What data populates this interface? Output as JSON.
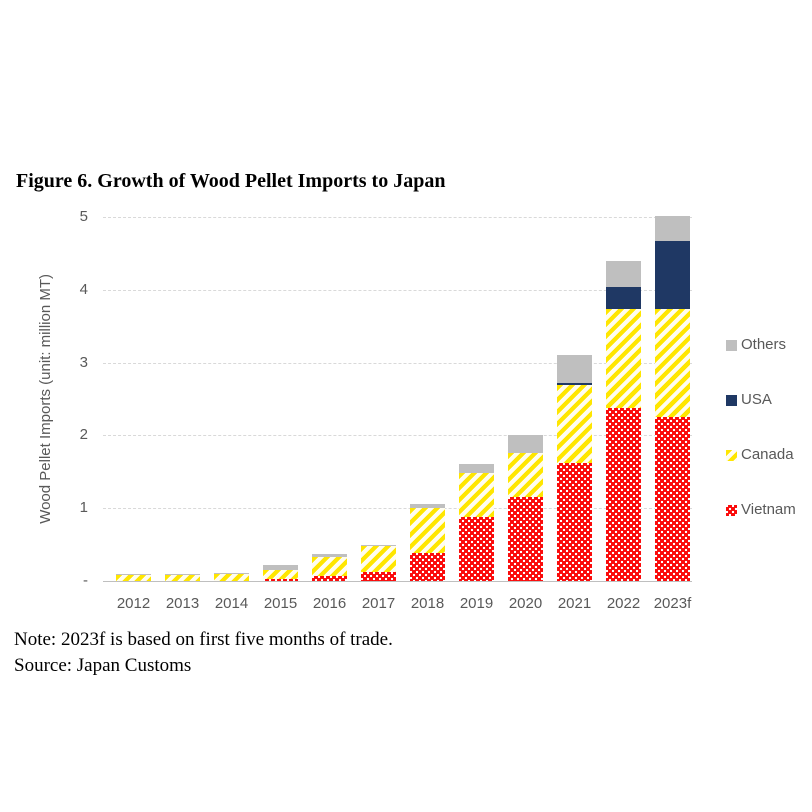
{
  "figure": {
    "title": "Figure 6. Growth of Wood Pellet Imports to Japan",
    "note": "Note: 2023f is based on first five months of trade.",
    "source": "Source: Japan Customs"
  },
  "chart_data": {
    "type": "bar",
    "stacked": true,
    "title": "Figure 6. Growth of Wood Pellet Imports to Japan",
    "xlabel": "",
    "ylabel": "Wood Pellet Imports (unit: million MT)",
    "ylim": [
      0,
      5
    ],
    "yticks": [
      1,
      2,
      3,
      4,
      5
    ],
    "zero_tick_label": "-",
    "grid": "horizontal-dashed",
    "legend_position": "right",
    "categories": [
      "2012",
      "2013",
      "2014",
      "2015",
      "2016",
      "2017",
      "2018",
      "2019",
      "2020",
      "2021",
      "2022",
      "2023f"
    ],
    "series": [
      {
        "name": "Vietnam",
        "color": "#fb0a0a",
        "pattern": "red-with-white-dots",
        "values": [
          0,
          0,
          0,
          0.03,
          0.07,
          0.12,
          0.38,
          0.88,
          1.16,
          1.62,
          2.38,
          2.25
        ]
      },
      {
        "name": "Canada",
        "color": "#ffe600",
        "pattern": "yellow-diagonal-stripes",
        "values": [
          0.08,
          0.08,
          0.09,
          0.12,
          0.26,
          0.36,
          0.62,
          0.61,
          0.61,
          1.07,
          1.36,
          1.48
        ]
      },
      {
        "name": "USA",
        "color": "#1f3864",
        "pattern": "solid",
        "values": [
          0,
          0,
          0,
          0,
          0,
          0,
          0,
          0,
          0,
          0.03,
          0.3,
          0.93
        ]
      },
      {
        "name": "Others",
        "color": "#bfbfbf",
        "pattern": "solid",
        "values": [
          0.01,
          0.01,
          0.01,
          0.07,
          0.04,
          0.02,
          0.05,
          0.12,
          0.25,
          0.38,
          0.36,
          0.34
        ]
      }
    ],
    "totals": [
      0.09,
      0.09,
      0.1,
      0.22,
      0.37,
      0.5,
      1.05,
      1.61,
      2.02,
      3.1,
      4.4,
      5.0
    ],
    "legend_order": [
      "Others",
      "USA",
      "Canada",
      "Vietnam"
    ]
  }
}
